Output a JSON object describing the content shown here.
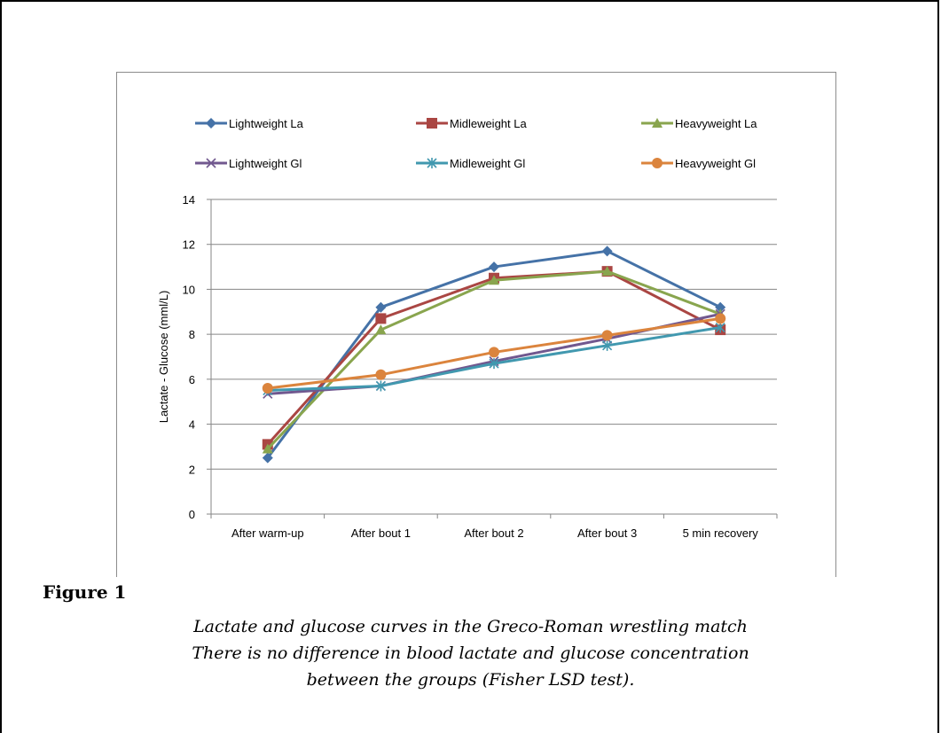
{
  "figure_label": "Figure 1",
  "caption": [
    "Lactate and glucose curves in the Greco-Roman wrestling match",
    "There is no difference in blood lactate and glucose concentration",
    "between the groups (Fisher LSD test)."
  ],
  "chart_data": {
    "type": "line",
    "title": "",
    "xlabel": "",
    "ylabel": "Lactate - Glucose (mml/L)",
    "categories": [
      "After warm-up",
      "After bout 1",
      "After bout 2",
      "After bout 3",
      "5 min recovery"
    ],
    "ylim": [
      0,
      14
    ],
    "yticks": [
      "0",
      "2",
      "4",
      "6",
      "8",
      "10",
      "12",
      "14"
    ],
    "grid": true,
    "legend_position": "top",
    "series": [
      {
        "name": "Lightweight La",
        "values": [
          2.5,
          9.2,
          11.0,
          11.7,
          9.2
        ],
        "color": "#4572A7",
        "marker": "diamond"
      },
      {
        "name": "Midleweight La",
        "values": [
          3.1,
          8.7,
          10.5,
          10.8,
          8.2
        ],
        "color": "#AA4643",
        "marker": "square"
      },
      {
        "name": "Heavyweight La",
        "values": [
          2.9,
          8.2,
          10.4,
          10.8,
          8.9
        ],
        "color": "#89A54E",
        "marker": "triangle"
      },
      {
        "name": "Lightweight Gl",
        "values": [
          5.35,
          5.7,
          6.8,
          7.8,
          8.9
        ],
        "color": "#71588F",
        "marker": "x"
      },
      {
        "name": "Midleweight Gl",
        "values": [
          5.5,
          5.7,
          6.7,
          7.5,
          8.3
        ],
        "color": "#4198AF",
        "marker": "star"
      },
      {
        "name": "Heavyweight Gl",
        "values": [
          5.6,
          6.2,
          7.2,
          7.95,
          8.7
        ],
        "color": "#DB843D",
        "marker": "circle"
      }
    ]
  }
}
